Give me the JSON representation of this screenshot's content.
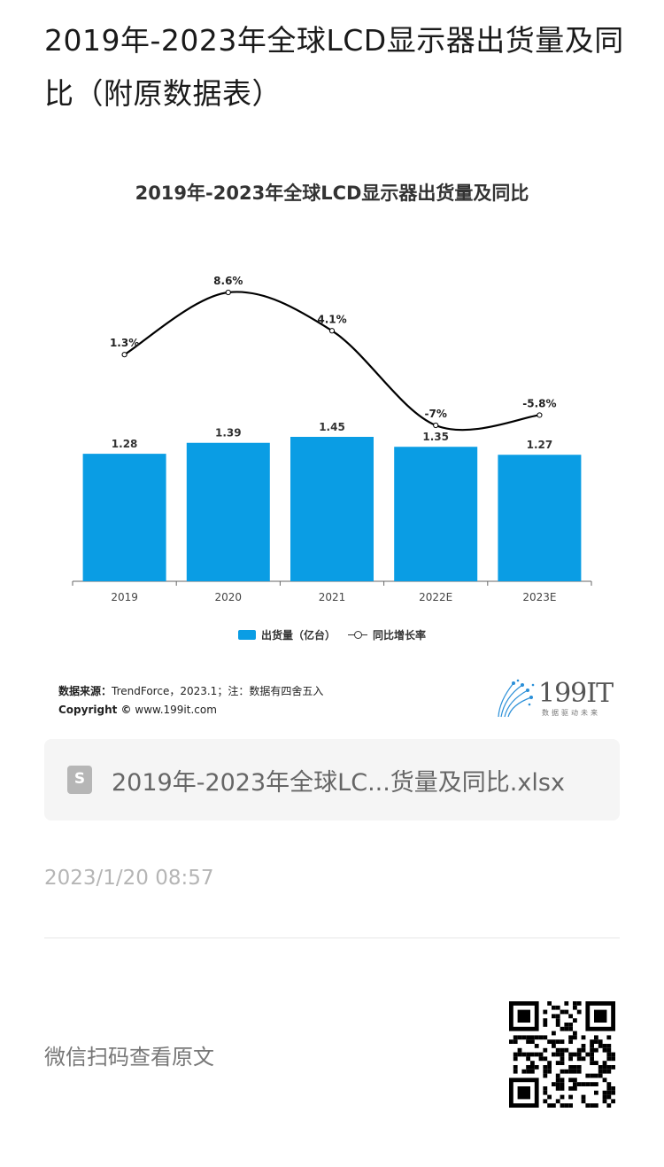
{
  "page": {
    "title": "2019年-2023年全球LCD显示器出货量及同比（附原数据表）"
  },
  "chart": {
    "title": "2019年-2023年全球LCD显示器出货量及同比",
    "legend": {
      "bar_label": "出货量（亿台）",
      "line_label": "同比增长率"
    },
    "source_label": "数据来源：",
    "source_text": "TrendForce，2023.1；注：数据有四舍五入",
    "copyright_label": "Copyright ©",
    "copyright_text": "www.199it.com",
    "brand_name": "199IT",
    "brand_tagline": "数据驱动未来",
    "colors": {
      "bar": "#0a9de4",
      "line": "#000000"
    }
  },
  "chart_data": {
    "type": "bar",
    "title": "2019年-2023年全球LCD显示器出货量及同比",
    "categories": [
      "2019",
      "2020",
      "2021",
      "2022E",
      "2023E"
    ],
    "series": [
      {
        "name": "出货量（亿台）",
        "type": "bar",
        "values": [
          1.28,
          1.39,
          1.45,
          1.35,
          1.27
        ],
        "labels": [
          "1.28",
          "1.39",
          "1.45",
          "1.35",
          "1.27"
        ]
      },
      {
        "name": "同比增长率",
        "type": "line",
        "values": [
          1.3,
          8.6,
          4.1,
          -7.0,
          -5.8
        ],
        "labels": [
          "1.3%",
          "8.6%",
          "4.1%",
          "-7%",
          "-5.8%"
        ]
      }
    ],
    "legend_position": "bottom",
    "grid": false
  },
  "attachment": {
    "file_name": "2019年-2023年全球LC...货量及同比.xlsx",
    "icon": "spreadsheet-icon"
  },
  "meta": {
    "timestamp": "2023/1/20 08:57",
    "scan_text": "微信扫码查看原文"
  }
}
